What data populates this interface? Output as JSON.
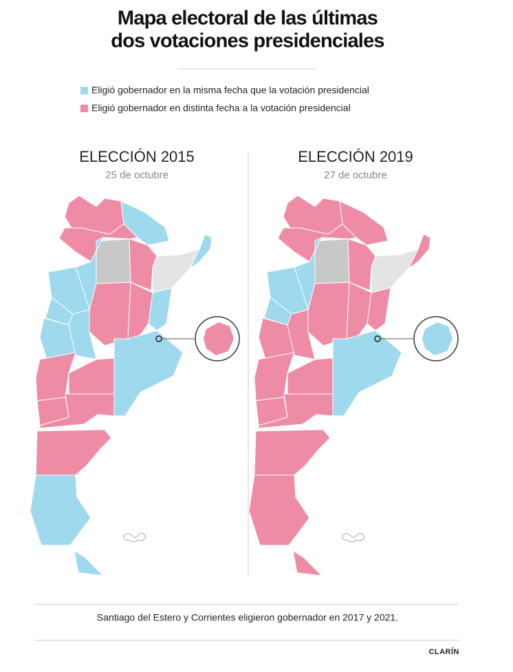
{
  "header": {
    "title": [
      "Mapa electoral de las últimas",
      "dos votaciones presidenciales"
    ]
  },
  "legend": [
    "Eligió gobernador en la misma fecha que la votación presidencial",
    "Eligió gobernador en distinta fecha a la votación presidencial"
  ],
  "maps": [
    {
      "title": "ELECCIÓN 2015",
      "subtitle": "25 de octubre"
    },
    {
      "title": "ELECCIÓN 2019",
      "subtitle": "27 de octubre"
    }
  ],
  "footnote": "Santiago del Estero y Corrientes eligieron gobernador en 2017 y 2021.",
  "source": "CLARÍN"
}
